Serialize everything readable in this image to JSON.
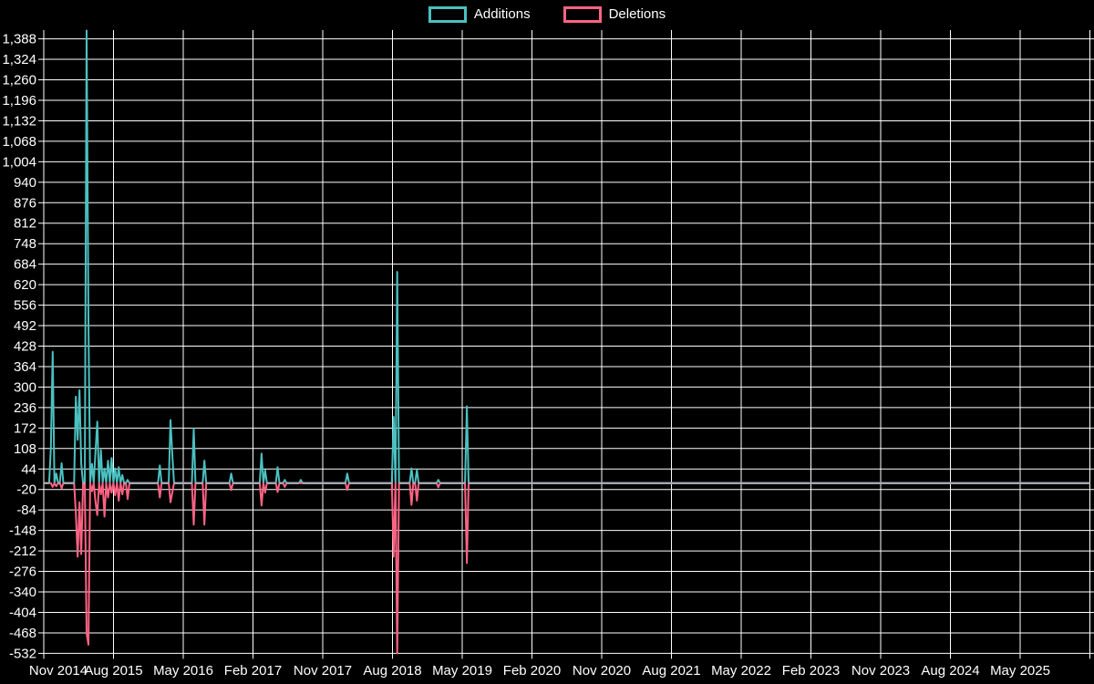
{
  "page": {
    "background_color": "#000000",
    "grid_color": "#ffffff",
    "text_color": "#ffffff"
  },
  "legend": [
    {
      "label": "Additions",
      "color": "#4BC0C0"
    },
    {
      "label": "Deletions",
      "color": "#FF6384"
    }
  ],
  "chart_data": {
    "type": "line",
    "title": "",
    "xlabel": "",
    "ylabel": "",
    "grid": true,
    "legend_position": "top-center",
    "background_color": "#000000",
    "grid_color": "#ffffff",
    "baseline_color": "#9FB4BE",
    "y_axis": {
      "min": -532,
      "max": 1388,
      "tick_step": 64,
      "tick_labels": [
        "1,388",
        "1,324",
        "1,260",
        "1,196",
        "1,132",
        "1,068",
        "1,004",
        "940",
        "876",
        "812",
        "748",
        "684",
        "620",
        "556",
        "492",
        "428",
        "364",
        "300",
        "236",
        "172",
        "108",
        "44",
        "-20",
        "-84",
        "-148",
        "-212",
        "-276",
        "-340",
        "-404",
        "-468",
        "-532"
      ]
    },
    "x_axis": {
      "labels": [
        "Nov 2014",
        "Aug 2015",
        "May 2016",
        "Feb 2017",
        "Nov 2017",
        "Aug 2018",
        "May 2019",
        "Feb 2020",
        "Nov 2020",
        "Aug 2021",
        "May 2022",
        "Feb 2023",
        "Nov 2023",
        "Aug 2024",
        "May 2025"
      ],
      "label_interval_months": 9,
      "gridline_count": 16
    },
    "weeks_total": 586,
    "series": [
      {
        "name": "Additions",
        "color": "#4BC0C0"
      },
      {
        "name": "Deletions",
        "color": "#FF6384"
      }
    ],
    "points_format": [
      "week_index",
      "additions",
      "deletions"
    ],
    "points": [
      [
        4,
        110,
        0
      ],
      [
        5,
        410,
        -12
      ],
      [
        7,
        30,
        -10
      ],
      [
        10,
        62,
        -16
      ],
      [
        18,
        270,
        -95
      ],
      [
        19,
        135,
        -230
      ],
      [
        20,
        290,
        -60
      ],
      [
        21,
        60,
        -222
      ],
      [
        24,
        1414,
        -470
      ],
      [
        25,
        505,
        -505
      ],
      [
        27,
        60,
        -25
      ],
      [
        29,
        100,
        -60
      ],
      [
        30,
        192,
        -100
      ],
      [
        32,
        103,
        -35
      ],
      [
        34,
        45,
        -105
      ],
      [
        36,
        70,
        -45
      ],
      [
        38,
        78,
        -30
      ],
      [
        40,
        46,
        -38
      ],
      [
        42,
        50,
        -55
      ],
      [
        44,
        25,
        -35
      ],
      [
        47,
        10,
        -50
      ],
      [
        65,
        55,
        -45
      ],
      [
        71,
        197,
        -60
      ],
      [
        72,
        90,
        -30
      ],
      [
        84,
        170,
        -130
      ],
      [
        90,
        70,
        -130
      ],
      [
        105,
        30,
        -22
      ],
      [
        122,
        92,
        -70
      ],
      [
        124,
        40,
        -30
      ],
      [
        131,
        50,
        -28
      ],
      [
        135,
        10,
        -12
      ],
      [
        144,
        10,
        0
      ],
      [
        170,
        30,
        -21
      ],
      [
        196,
        207,
        -230
      ],
      [
        198,
        660,
        -532
      ],
      [
        206,
        46,
        -68
      ],
      [
        209,
        41,
        -55
      ],
      [
        221,
        10,
        -13
      ],
      [
        237,
        240,
        -250
      ]
    ]
  }
}
